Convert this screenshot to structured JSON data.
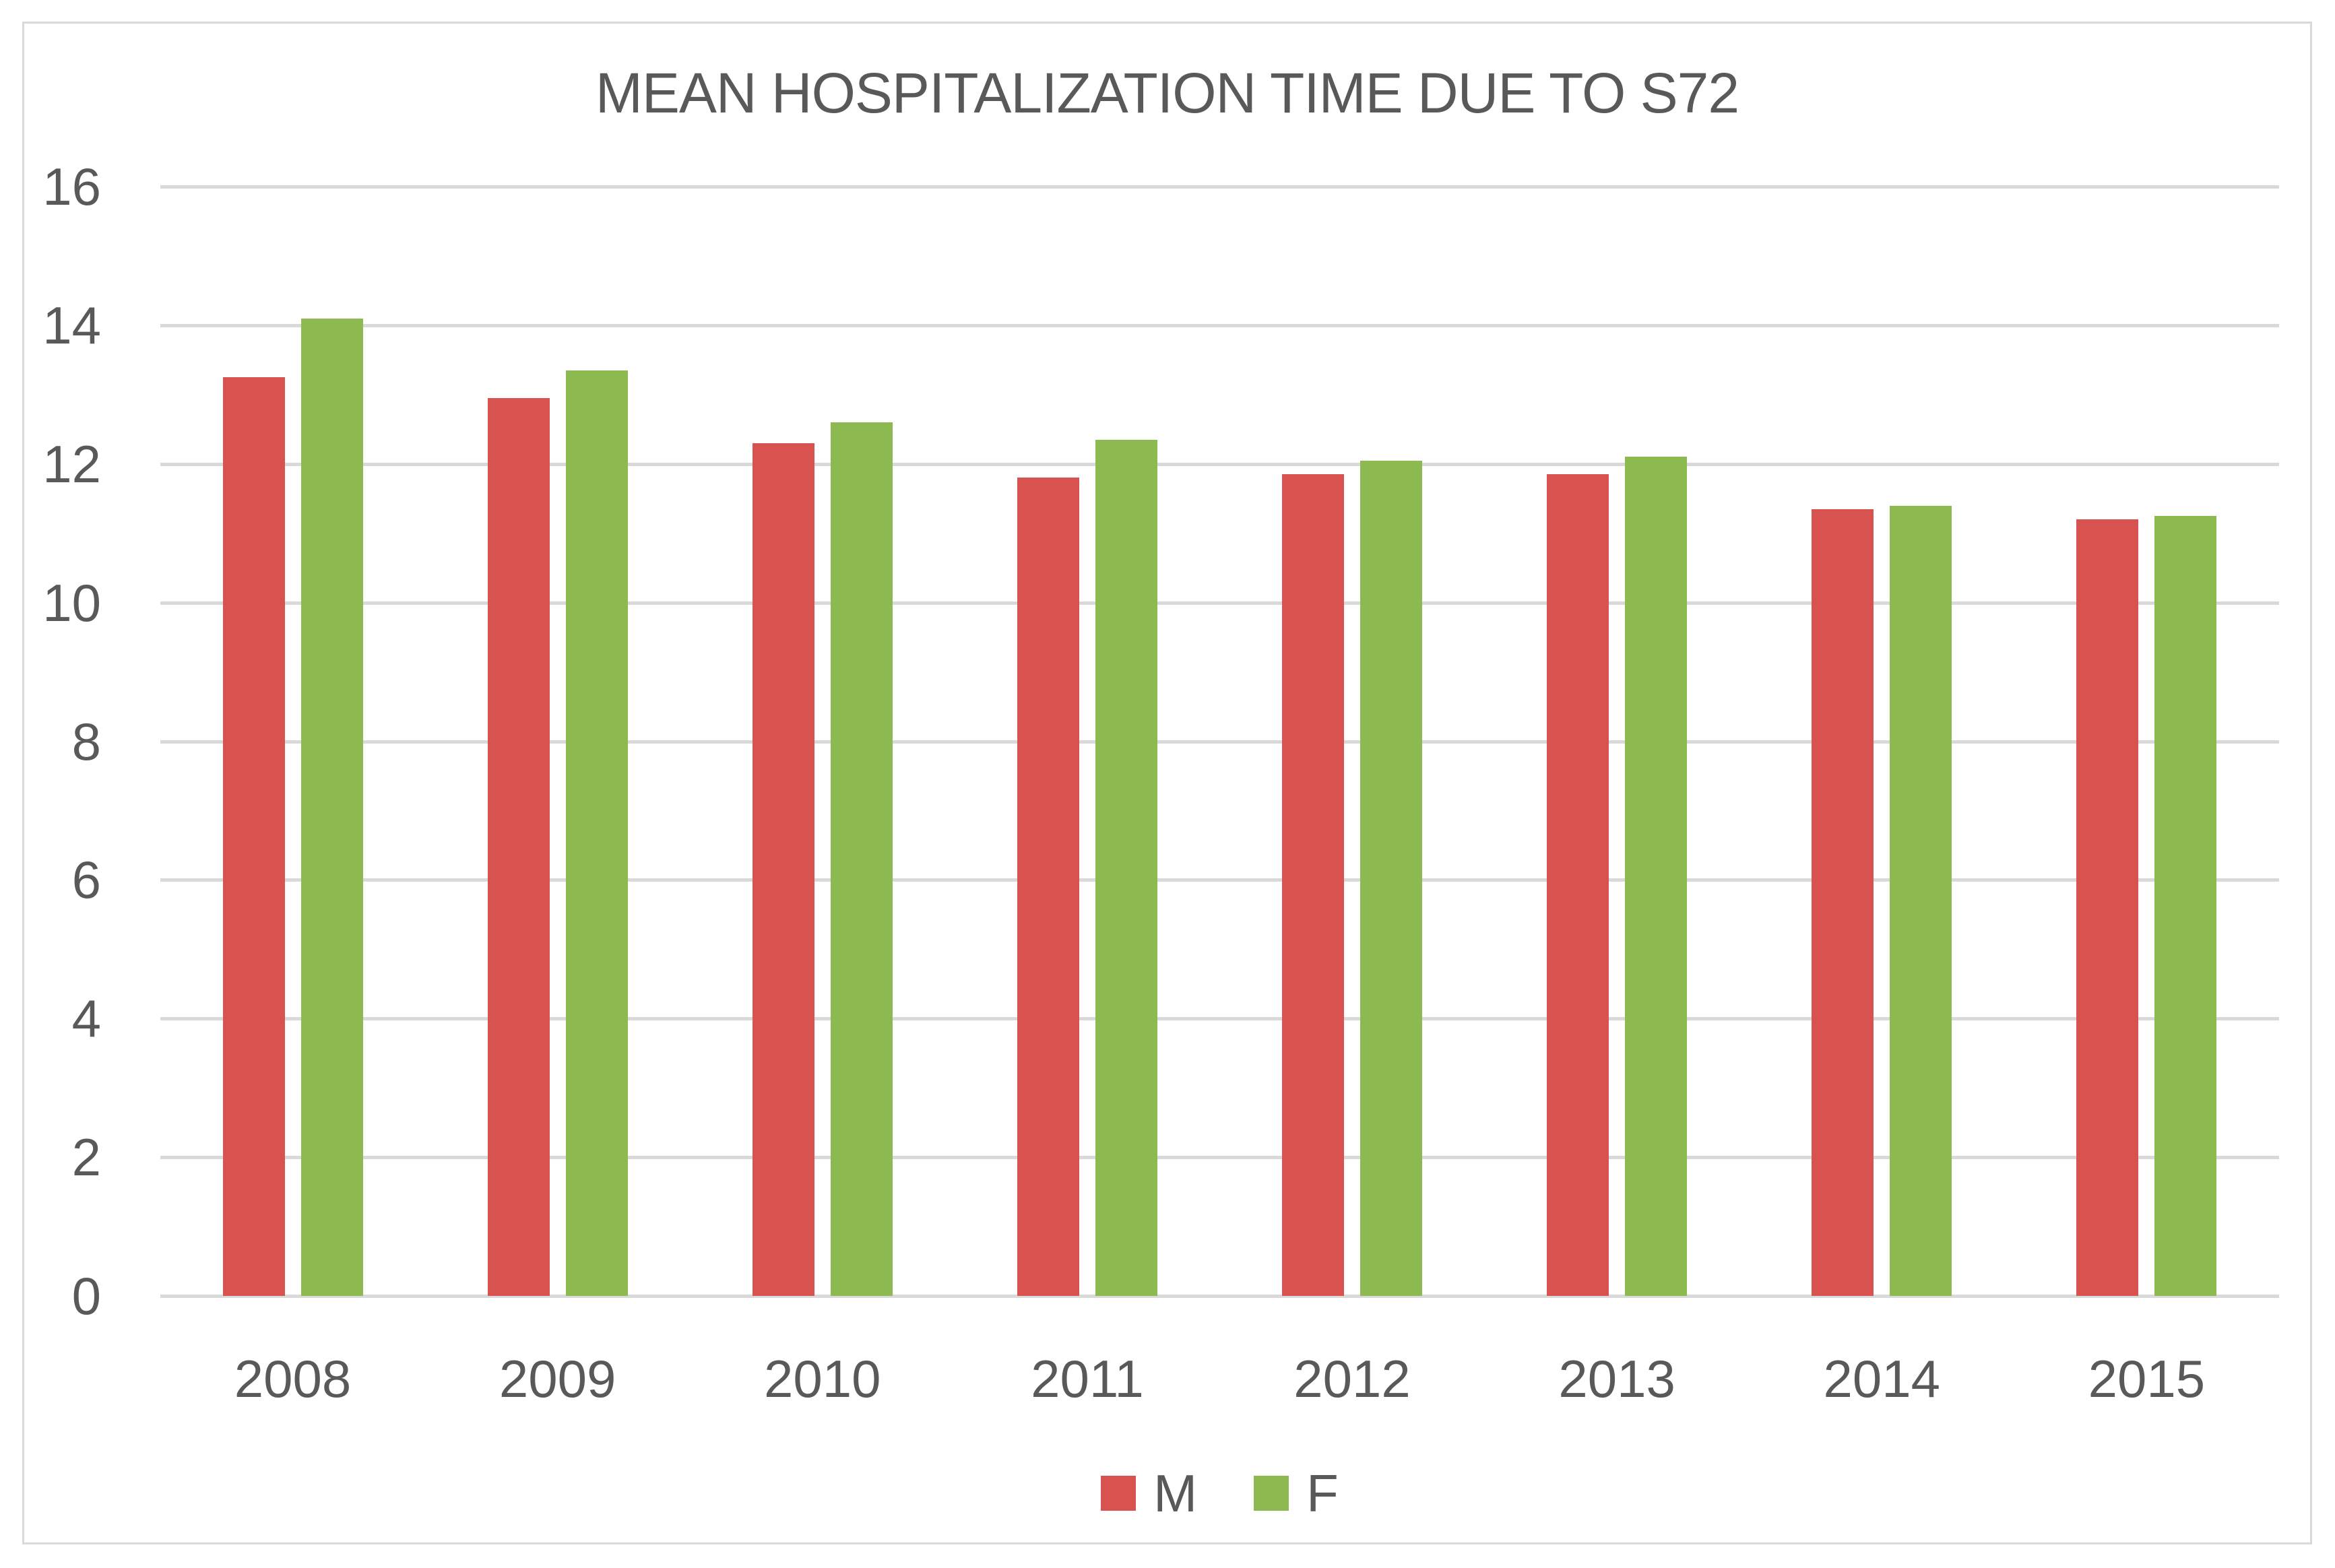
{
  "chart_data": {
    "type": "bar",
    "title": "MEAN HOSPITALIZATION TIME DUE TO S72",
    "categories": [
      "2008",
      "2009",
      "2010",
      "2011",
      "2012",
      "2013",
      "2014",
      "2015"
    ],
    "series": [
      {
        "name": "M",
        "color": "#d8534f",
        "values": [
          13.25,
          12.95,
          12.3,
          11.8,
          11.85,
          11.85,
          11.35,
          11.2
        ]
      },
      {
        "name": "F",
        "color": "#8cba50",
        "values": [
          14.1,
          13.35,
          12.6,
          12.35,
          12.05,
          12.1,
          11.4,
          11.25
        ]
      }
    ],
    "xlabel": "",
    "ylabel": "",
    "ylim": [
      0,
      16
    ],
    "ytick_step": 2,
    "yticks": [
      "0",
      "2",
      "4",
      "6",
      "8",
      "10",
      "12",
      "14",
      "16"
    ],
    "grid": "horizontal",
    "legend_position": "bottom",
    "colors": {
      "grid": "#d9d9d9",
      "frame_border": "#d9d9d9",
      "text": "#595959",
      "background": "#ffffff"
    }
  }
}
